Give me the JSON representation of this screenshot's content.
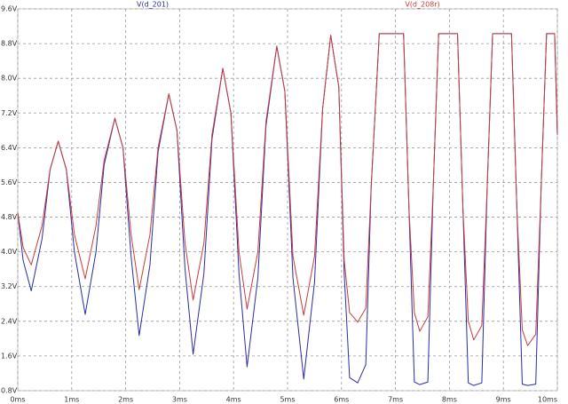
{
  "chart_data": {
    "type": "line",
    "x": [
      0,
      0.1,
      0.25,
      0.45,
      0.6,
      0.75,
      0.9,
      1.05,
      1.25,
      1.45,
      1.6,
      1.8,
      1.95,
      2.1,
      2.25,
      2.45,
      2.6,
      2.8,
      2.95,
      3.1,
      3.25,
      3.45,
      3.6,
      3.8,
      3.95,
      4.1,
      4.25,
      4.45,
      4.6,
      4.8,
      4.95,
      5.1,
      5.3,
      5.5,
      5.65,
      5.8,
      5.95,
      6.05,
      6.15,
      6.3,
      6.45,
      6.55,
      6.7,
      7.15,
      7.25,
      7.35,
      7.45,
      7.6,
      7.7,
      7.8,
      8.15,
      8.25,
      8.35,
      8.45,
      8.6,
      8.7,
      8.8,
      9.15,
      9.25,
      9.35,
      9.45,
      9.6,
      9.7,
      9.8,
      9.95,
      10
    ],
    "series": [
      {
        "name": "V(d_201)",
        "color": "#2b2ba8",
        "values": [
          4.9,
          3.8,
          3.1,
          4.3,
          5.9,
          6.55,
          5.9,
          4.0,
          2.56,
          4.0,
          6.0,
          7.08,
          6.4,
          3.9,
          2.07,
          3.7,
          6.3,
          7.64,
          6.8,
          3.6,
          1.64,
          3.5,
          6.6,
          8.23,
          7.2,
          3.5,
          1.35,
          3.4,
          6.9,
          8.74,
          7.7,
          3.4,
          1.07,
          3.3,
          7.3,
          8.99,
          7.8,
          3.5,
          1.1,
          0.98,
          1.4,
          5.5,
          9.03,
          9.03,
          5.0,
          1.0,
          0.94,
          1.0,
          5.5,
          9.03,
          9.03,
          5.0,
          0.98,
          0.92,
          0.98,
          5.5,
          9.03,
          9.03,
          5.0,
          0.95,
          0.92,
          0.95,
          5.5,
          9.03,
          9.03,
          6.7
        ]
      },
      {
        "name": "V(d_208r)",
        "color": "#c83c3c",
        "values": [
          4.9,
          4.1,
          3.7,
          4.6,
          5.9,
          6.55,
          5.9,
          4.4,
          3.38,
          4.6,
          6.1,
          7.08,
          6.4,
          4.4,
          3.13,
          4.4,
          6.4,
          7.64,
          6.8,
          4.2,
          2.89,
          4.2,
          6.7,
          8.23,
          7.2,
          4.0,
          2.68,
          4.0,
          7.0,
          8.74,
          7.7,
          3.9,
          2.54,
          3.9,
          7.3,
          8.99,
          7.8,
          3.8,
          2.6,
          2.38,
          2.7,
          5.5,
          9.03,
          9.03,
          5.0,
          2.6,
          2.17,
          2.5,
          5.5,
          9.03,
          9.03,
          5.0,
          2.4,
          1.97,
          2.3,
          5.5,
          9.03,
          9.03,
          5.0,
          2.2,
          1.84,
          2.1,
          5.5,
          9.03,
          9.03,
          6.7
        ]
      }
    ],
    "xlim": [
      0,
      10
    ],
    "xticks": [
      {
        "value": 0,
        "label": "0ms"
      },
      {
        "value": 1,
        "label": "1ms"
      },
      {
        "value": 2,
        "label": "2ms"
      },
      {
        "value": 3,
        "label": "3ms"
      },
      {
        "value": 4,
        "label": "4ms"
      },
      {
        "value": 5,
        "label": "5ms"
      },
      {
        "value": 6,
        "label": "6ms"
      },
      {
        "value": 7,
        "label": "7ms"
      },
      {
        "value": 8,
        "label": "8ms"
      },
      {
        "value": 9,
        "label": "9ms"
      },
      {
        "value": 10,
        "label": "10ms"
      }
    ],
    "ylim": [
      0.8,
      9.6
    ],
    "yticks": [
      {
        "value": 0.8,
        "label": "0.8V"
      },
      {
        "value": 1.6,
        "label": "1.6V"
      },
      {
        "value": 2.4,
        "label": "2.4V"
      },
      {
        "value": 3.2,
        "label": "3.2V"
      },
      {
        "value": 4.0,
        "label": "4.0V"
      },
      {
        "value": 4.8,
        "label": "4.8V"
      },
      {
        "value": 5.6,
        "label": "5.6V"
      },
      {
        "value": 6.4,
        "label": "6.4V"
      },
      {
        "value": 7.2,
        "label": "7.2V"
      },
      {
        "value": 8.0,
        "label": "8.0V"
      },
      {
        "value": 8.8,
        "label": "8.8V"
      },
      {
        "value": 9.6,
        "label": "9.6V"
      }
    ],
    "grid": true
  }
}
